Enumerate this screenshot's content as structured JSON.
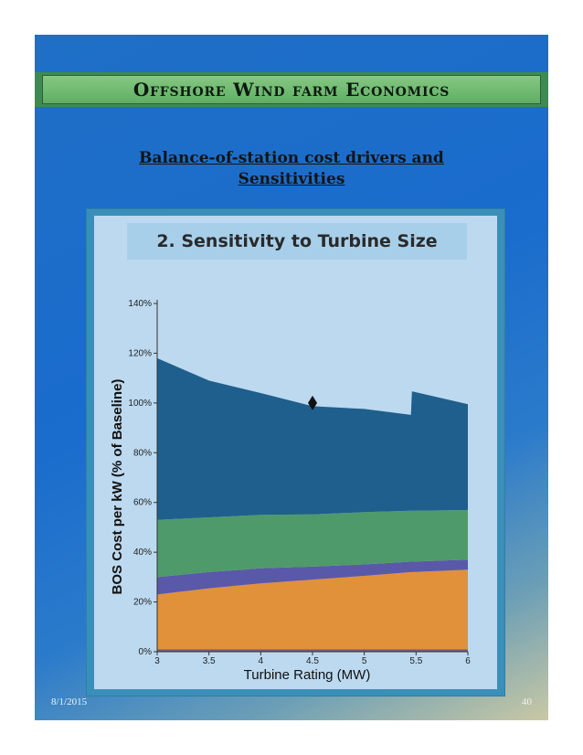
{
  "slide": {
    "banner_title": "Offshore Wind farm Economics",
    "subtitle_line1": "Balance-of-station cost drivers and",
    "subtitle_line2": "Sensitivities",
    "date": "8/1/2015",
    "page_number": "40"
  },
  "chart_data": {
    "type": "area",
    "title": "2. Sensitivity to Turbine Size",
    "xlabel": "Turbine Rating (MW)",
    "ylabel": "BOS Cost per kW (% of Baseline)",
    "xlim": [
      3,
      6
    ],
    "ylim": [
      0,
      140
    ],
    "x_ticks": [
      "3",
      "3.5",
      "4",
      "4.5",
      "5",
      "5.5",
      "6"
    ],
    "y_ticks": [
      "0%",
      "20%",
      "40%",
      "60%",
      "80%",
      "100%",
      "120%",
      "140%"
    ],
    "grid": false,
    "legend": "none",
    "colors": [
      "#7a5a78",
      "#e0913a",
      "#5a58a8",
      "#4f9a6a",
      "#1f5f8d"
    ],
    "x": [
      3,
      3.5,
      4,
      4.5,
      5,
      5.45,
      5.46,
      6
    ],
    "series": [
      {
        "values": [
          1,
          1,
          1,
          1,
          1,
          1,
          1,
          1
        ]
      },
      {
        "values": [
          22,
          24.5,
          26.5,
          28,
          29.5,
          31,
          31,
          32
        ]
      },
      {
        "values": [
          7,
          6.5,
          6,
          5.2,
          4.6,
          4.2,
          4.2,
          4
        ]
      },
      {
        "values": [
          23,
          22,
          21.5,
          21,
          21,
          20.5,
          20.5,
          20
        ]
      },
      {
        "values": [
          65,
          55,
          49,
          43.5,
          41.5,
          38.5,
          48,
          42.5
        ]
      }
    ],
    "marker": {
      "x": 4.5,
      "y": 100
    }
  }
}
